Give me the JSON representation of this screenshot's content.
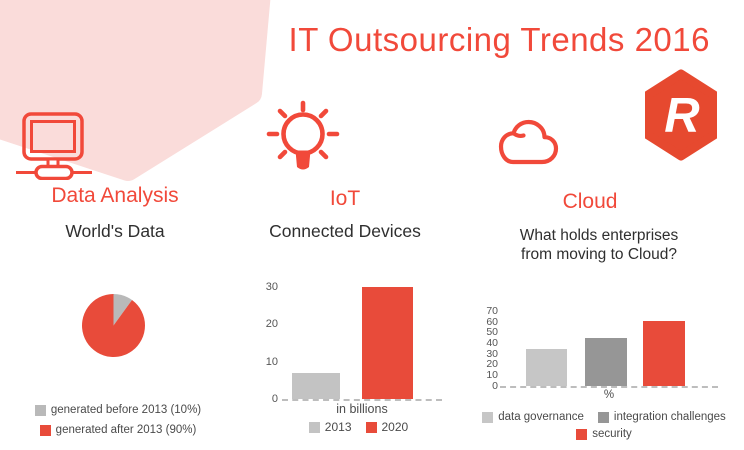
{
  "title": "IT Outsourcing Trends 2016",
  "logo": {
    "letter": "R",
    "shape": "hexagon",
    "color": "#e6492f",
    "letter_color": "#ffffff"
  },
  "colors": {
    "accent_red": "#f1493a",
    "chart_red": "#e84b3a",
    "light_gray": "#c3c3c3",
    "pie_gray": "#b9b9b9",
    "mid_gray": "#969696",
    "background_pink": "#fadcda",
    "text_dark": "#2f2f2f"
  },
  "sections": {
    "data_analysis": {
      "icon": "monitor-icon",
      "heading": "Data Analysis",
      "subheading": "World's Data"
    },
    "iot": {
      "icon": "lightbulb-icon",
      "heading": "IoT",
      "subheading": "Connected Devices"
    },
    "cloud": {
      "icon": "cloud-icon",
      "heading": "Cloud",
      "subheading_line1": "What holds enterprises",
      "subheading_line2": "from moving to Cloud?"
    }
  },
  "chart_data": [
    {
      "type": "pie",
      "title": "World's Data",
      "slices": [
        {
          "label": "generated before 2013 (10%)",
          "value": 10,
          "color": "#b9b9b9"
        },
        {
          "label": "generated after 2013 (90%)",
          "value": 90,
          "color": "#e84b3a"
        }
      ],
      "start_angle_deg_from_top": 0,
      "direction": "clockwise",
      "legend_position": "bottom"
    },
    {
      "type": "bar",
      "title": "Connected Devices",
      "categories": [
        "2013",
        "2020"
      ],
      "values": [
        7,
        30
      ],
      "colors": [
        "#c3c3c3",
        "#e84b3a"
      ],
      "xlabel": "in billions",
      "ylabel": "",
      "yticks": [
        0,
        10,
        20,
        30
      ],
      "ylim": [
        0,
        30
      ],
      "baseline_style": "dashed",
      "grid": false,
      "legend_position": "bottom"
    },
    {
      "type": "bar",
      "title": "What holds enterprises from moving to Cloud?",
      "categories": [
        "data governance",
        "integration challenges",
        "security"
      ],
      "values": [
        35,
        45,
        61
      ],
      "colors": [
        "#c6c6c6",
        "#969696",
        "#e84b3a"
      ],
      "xlabel": "%",
      "ylabel": "",
      "yticks": [
        0,
        10,
        20,
        30,
        40,
        50,
        60,
        70
      ],
      "ylim": [
        0,
        70
      ],
      "baseline_style": "dashed",
      "grid": false,
      "legend_position": "bottom"
    }
  ]
}
